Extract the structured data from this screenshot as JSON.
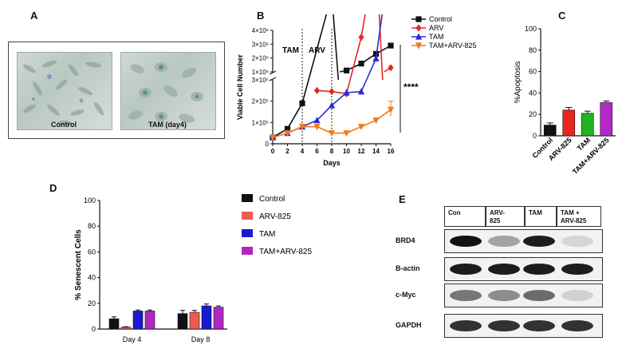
{
  "panels": {
    "A": "A",
    "B": "B",
    "C": "C",
    "D": "D",
    "E": "E"
  },
  "panel_a": {
    "images": [
      {
        "caption": "Control"
      },
      {
        "caption": "TAM (day4)"
      }
    ]
  },
  "panel_e": {
    "headers": [
      "Con",
      "ARV-\n825",
      "TAM",
      "TAM +\nARV-825"
    ],
    "header_lines": [
      [
        "Con"
      ],
      [
        "ARV-",
        "825"
      ],
      [
        "TAM"
      ],
      [
        "TAM +",
        "ARV-825"
      ]
    ],
    "rows": [
      {
        "label": "BRD4",
        "intensities": [
          1.0,
          0.35,
          0.95,
          0.12
        ]
      },
      {
        "label": "B-actin",
        "intensities": [
          0.95,
          0.95,
          0.95,
          0.95
        ]
      },
      {
        "label": "c-Myc",
        "intensities": [
          0.55,
          0.45,
          0.6,
          0.15
        ]
      },
      {
        "label": "GAPDH",
        "intensities": [
          0.85,
          0.85,
          0.85,
          0.85
        ]
      }
    ]
  },
  "colors": {
    "control": "#111111",
    "arv": "#e8261f",
    "tam": "#2a2ad8",
    "combo": "#f07a1a",
    "combo_bar": "#b329c8",
    "tam_bar_c": "#22b322",
    "d_arv": "#f05a55",
    "d_tam": "#1a1ad0",
    "d_combo": "#b027c0"
  },
  "chart_data": [
    {
      "panel": "B",
      "type": "line",
      "xlabel": "Days",
      "ylabel": "Viable Cell Number",
      "x_ticks": [
        "0",
        "2",
        "4",
        "6",
        "8",
        "10",
        "12",
        "14",
        "16"
      ],
      "y_ticks_lower": [
        "0",
        "1×10⁵",
        "2×10⁵",
        "3×10⁵"
      ],
      "y_ticks_upper": [
        "1×10⁶",
        "2×10⁶",
        "3×10⁶",
        "4×10⁶"
      ],
      "y_axis": "broken: 0–3×10⁵ below the break, 1×10⁶–4×10⁶ above it",
      "phases": [
        "TAM",
        "ARV"
      ],
      "phase_boundaries": [
        4,
        8
      ],
      "significance": "****",
      "legend": [
        "Control",
        "ARV",
        "TAM",
        "TAM+ARV-825"
      ],
      "legend_position": "right",
      "series": [
        {
          "name": "Control",
          "color": "control",
          "marker": "square",
          "x": [
            0,
            2,
            4,
            8,
            10,
            12,
            14,
            16
          ],
          "y": [
            30000,
            70000,
            190000,
            700000,
            1100000,
            1600000,
            2300000,
            2900000
          ]
        },
        {
          "name": "ARV",
          "color": "arv",
          "marker": "diamond",
          "x": [
            6,
            8,
            10,
            12,
            14,
            16
          ],
          "y": [
            250000,
            245000,
            235000,
            500000,
            900000,
            1300000
          ]
        },
        {
          "name": "TAM",
          "color": "tam",
          "marker": "triangle",
          "x": [
            0,
            2,
            4,
            6,
            8,
            10,
            12,
            14,
            16
          ],
          "y": [
            30000,
            50000,
            80000,
            110000,
            180000,
            240000,
            245000,
            400000,
            900000
          ]
        },
        {
          "name": "TAM+ARV-825",
          "color": "combo",
          "marker": "triangle-down",
          "x": [
            0,
            2,
            4,
            6,
            8,
            10,
            12,
            14,
            16
          ],
          "y": [
            30000,
            50000,
            80000,
            80000,
            50000,
            50000,
            80000,
            110000,
            160000
          ]
        }
      ]
    },
    {
      "panel": "C",
      "type": "bar",
      "ylabel": "%Apoptosis",
      "ylim": [
        0,
        100
      ],
      "y_ticks": [
        "0",
        "20",
        "40",
        "60",
        "80",
        "100"
      ],
      "categories": [
        "Control",
        "ARV-825",
        "TAM",
        "TAM+ARV-825"
      ],
      "values": [
        10,
        24,
        21,
        31
      ],
      "errors": [
        2,
        2.5,
        2,
        1.5
      ],
      "bar_colors": [
        "control",
        "arv",
        "tam_bar_c",
        "combo_bar"
      ]
    },
    {
      "panel": "D",
      "type": "bar",
      "ylabel": "% Senescent Cells",
      "ylim": [
        0,
        100
      ],
      "y_ticks": [
        "0",
        "20",
        "40",
        "60",
        "80",
        "100"
      ],
      "categories": [
        "Day 4",
        "Day 8"
      ],
      "legend_position": "right",
      "series": [
        {
          "name": "Control",
          "color": "control",
          "values": [
            8,
            12
          ],
          "errors": [
            1.5,
            2.5
          ]
        },
        {
          "name": "ARV-825",
          "color": "d_arv",
          "values": [
            1.5,
            13
          ],
          "errors": [
            0.3,
            1.5
          ]
        },
        {
          "name": "TAM",
          "color": "d_tam",
          "values": [
            14,
            18
          ],
          "errors": [
            0.8,
            1.5
          ]
        },
        {
          "name": "TAM+ARV-825",
          "color": "d_combo",
          "values": [
            14,
            17
          ],
          "errors": [
            0.8,
            1
          ]
        }
      ]
    }
  ]
}
